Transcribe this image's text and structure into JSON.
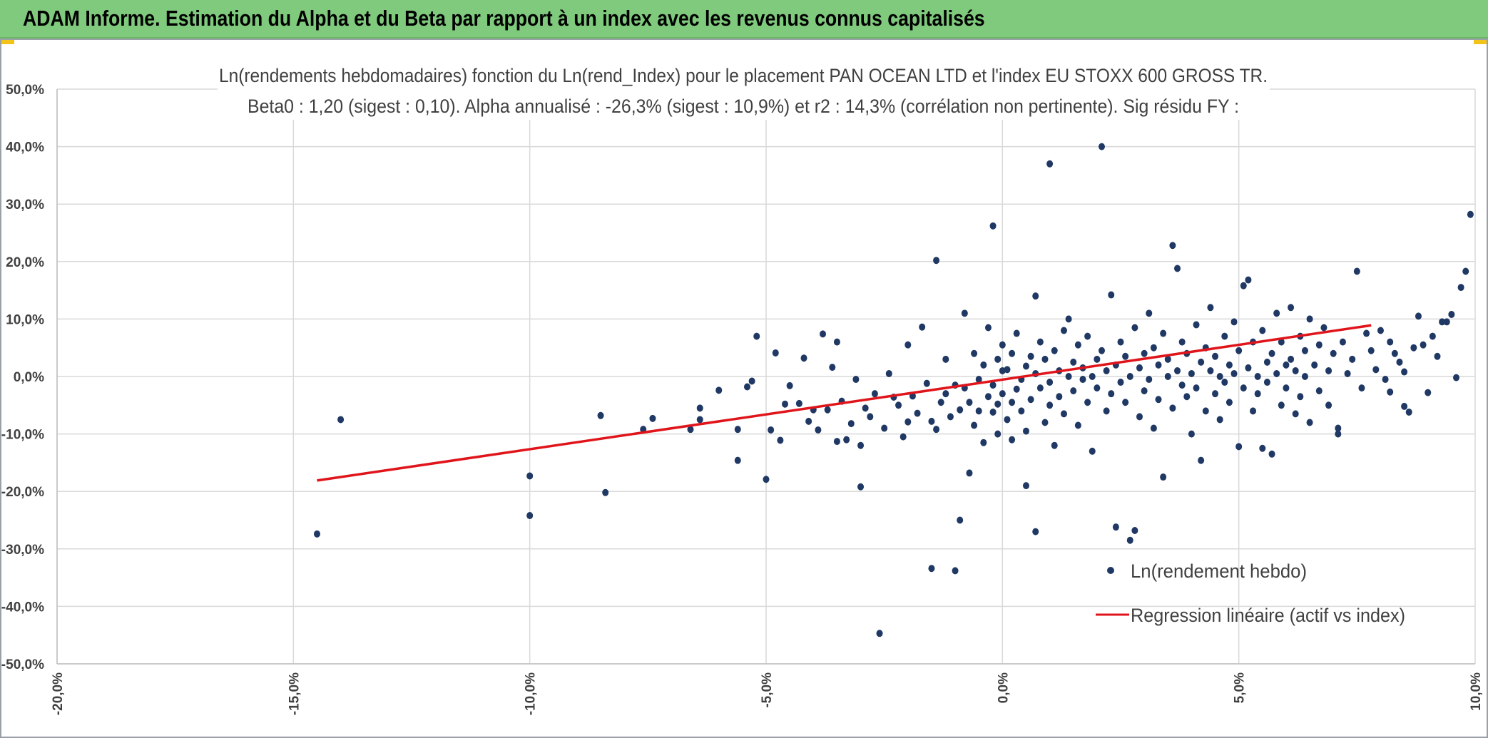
{
  "header": {
    "title": "ADAM Informe. Estimation du Alpha et du Beta par rapport à un index avec les revenus connus capitalisés"
  },
  "colors": {
    "header_bg": "#7fca7c",
    "accent_corner": "#f2c318",
    "point": "#203864",
    "regression": "#e0151b",
    "grid": "#d9d9d9"
  },
  "chart_data": {
    "type": "scatter",
    "title_lines": [
      "Ln(rendements hebdomadaires) fonction du Ln(rend_Index) pour le placement PAN OCEAN LTD et l'index EU STOXX 600 GROSS TR.",
      "Beta0 : 1,20 (sigest : 0,10).  Alpha annualisé : -26,3% (sigest : 10,9%)  et r2 : 14,3% (corrélation non pertinente). Sig résidu FY :"
    ],
    "xlim": [
      -0.2,
      0.1
    ],
    "ylim": [
      -0.5,
      0.5
    ],
    "x_ticks": [
      "-20,0%",
      "-15,0%",
      "-10,0%",
      "-5,0%",
      "0,0%",
      "5,0%",
      "10,0%"
    ],
    "x_tick_values": [
      -0.2,
      -0.15,
      -0.1,
      -0.05,
      0.0,
      0.05,
      0.1
    ],
    "y_ticks": [
      "50,0%",
      "40,0%",
      "30,0%",
      "20,0%",
      "10,0%",
      "0,0%",
      "-10,0%",
      "-20,0%",
      "-30,0%",
      "-40,0%",
      "-50,0%"
    ],
    "y_tick_values": [
      0.5,
      0.4,
      0.3,
      0.2,
      0.1,
      0.0,
      -0.1,
      -0.2,
      -0.3,
      -0.4,
      -0.5
    ],
    "grid": true,
    "legend_position": "bottom-right",
    "series": [
      {
        "name": "Ln(rendement hebdo)",
        "kind": "scatter",
        "points": [
          [
            -0.145,
            -0.274
          ],
          [
            -0.14,
            -0.075
          ],
          [
            -0.1,
            -0.242
          ],
          [
            -0.1,
            -0.173
          ],
          [
            -0.085,
            -0.068
          ],
          [
            -0.084,
            -0.202
          ],
          [
            -0.076,
            -0.092
          ],
          [
            -0.074,
            -0.073
          ],
          [
            -0.066,
            -0.092
          ],
          [
            -0.064,
            -0.075
          ],
          [
            -0.064,
            -0.055
          ],
          [
            -0.06,
            -0.024
          ],
          [
            -0.056,
            -0.092
          ],
          [
            -0.056,
            -0.146
          ],
          [
            -0.054,
            -0.018
          ],
          [
            -0.053,
            -0.008
          ],
          [
            -0.052,
            0.07
          ],
          [
            -0.05,
            -0.179
          ],
          [
            -0.049,
            -0.093
          ],
          [
            -0.048,
            0.041
          ],
          [
            -0.047,
            -0.111
          ],
          [
            -0.046,
            -0.048
          ],
          [
            -0.045,
            -0.016
          ],
          [
            -0.043,
            -0.047
          ],
          [
            -0.042,
            0.032
          ],
          [
            -0.041,
            -0.078
          ],
          [
            -0.04,
            -0.058
          ],
          [
            -0.039,
            -0.093
          ],
          [
            -0.038,
            0.074
          ],
          [
            -0.037,
            -0.058
          ],
          [
            -0.036,
            0.016
          ],
          [
            -0.035,
            -0.113
          ],
          [
            -0.035,
            0.06
          ],
          [
            -0.034,
            -0.043
          ],
          [
            -0.033,
            -0.11
          ],
          [
            -0.032,
            -0.082
          ],
          [
            -0.031,
            -0.005
          ],
          [
            -0.03,
            -0.192
          ],
          [
            -0.03,
            -0.12
          ],
          [
            -0.029,
            -0.055
          ],
          [
            -0.028,
            -0.07
          ],
          [
            -0.027,
            -0.03
          ],
          [
            -0.026,
            -0.447
          ],
          [
            -0.025,
            -0.09
          ],
          [
            -0.024,
            0.005
          ],
          [
            -0.023,
            -0.036
          ],
          [
            -0.022,
            -0.05
          ],
          [
            -0.021,
            -0.105
          ],
          [
            -0.02,
            -0.079
          ],
          [
            -0.02,
            0.055
          ],
          [
            -0.019,
            -0.034
          ],
          [
            -0.018,
            -0.064
          ],
          [
            -0.017,
            0.086
          ],
          [
            -0.016,
            -0.012
          ],
          [
            -0.015,
            -0.078
          ],
          [
            -0.015,
            -0.334
          ],
          [
            -0.014,
            0.202
          ],
          [
            -0.014,
            -0.092
          ],
          [
            -0.013,
            -0.045
          ],
          [
            -0.012,
            -0.03
          ],
          [
            -0.012,
            0.03
          ],
          [
            -0.011,
            -0.07
          ],
          [
            -0.01,
            -0.338
          ],
          [
            -0.01,
            -0.015
          ],
          [
            -0.009,
            -0.058
          ],
          [
            -0.009,
            -0.25
          ],
          [
            -0.008,
            0.11
          ],
          [
            -0.008,
            -0.02
          ],
          [
            -0.007,
            -0.045
          ],
          [
            -0.007,
            -0.168
          ],
          [
            -0.006,
            0.04
          ],
          [
            -0.006,
            -0.085
          ],
          [
            -0.005,
            -0.005
          ],
          [
            -0.005,
            -0.06
          ],
          [
            -0.004,
            0.02
          ],
          [
            -0.004,
            -0.115
          ],
          [
            -0.003,
            -0.035
          ],
          [
            -0.003,
            0.085
          ],
          [
            -0.002,
            0.262
          ],
          [
            -0.002,
            -0.062
          ],
          [
            -0.002,
            -0.015
          ],
          [
            -0.001,
            0.03
          ],
          [
            -0.001,
            -0.048
          ],
          [
            -0.001,
            -0.1
          ],
          [
            0.0,
            0.01
          ],
          [
            0.0,
            -0.03
          ],
          [
            0.0,
            0.055
          ],
          [
            0.001,
            -0.075
          ],
          [
            0.001,
            0.012
          ],
          [
            0.002,
            -0.045
          ],
          [
            0.002,
            -0.11
          ],
          [
            0.002,
            0.04
          ],
          [
            0.003,
            -0.022
          ],
          [
            0.003,
            0.075
          ],
          [
            0.004,
            -0.005
          ],
          [
            0.004,
            -0.06
          ],
          [
            0.005,
            0.018
          ],
          [
            0.005,
            -0.19
          ],
          [
            0.005,
            -0.095
          ],
          [
            0.006,
            0.035
          ],
          [
            0.006,
            -0.04
          ],
          [
            0.007,
            0.005
          ],
          [
            0.007,
            0.14
          ],
          [
            0.007,
            -0.27
          ],
          [
            0.008,
            -0.02
          ],
          [
            0.008,
            0.06
          ],
          [
            0.009,
            -0.08
          ],
          [
            0.009,
            0.03
          ],
          [
            0.01,
            0.37
          ],
          [
            0.01,
            -0.01
          ],
          [
            0.01,
            -0.05
          ],
          [
            0.011,
            0.045
          ],
          [
            0.011,
            -0.12
          ],
          [
            0.012,
            0.01
          ],
          [
            0.012,
            -0.035
          ],
          [
            0.013,
            0.08
          ],
          [
            0.013,
            -0.065
          ],
          [
            0.014,
            0.0
          ],
          [
            0.014,
            0.1
          ],
          [
            0.015,
            -0.025
          ],
          [
            0.015,
            0.025
          ],
          [
            0.016,
            -0.085
          ],
          [
            0.016,
            0.055
          ],
          [
            0.017,
            -0.005
          ],
          [
            0.017,
            0.015
          ],
          [
            0.018,
            -0.045
          ],
          [
            0.018,
            0.07
          ],
          [
            0.019,
            0.0
          ],
          [
            0.019,
            -0.13
          ],
          [
            0.02,
            0.03
          ],
          [
            0.02,
            -0.02
          ],
          [
            0.021,
            0.4
          ],
          [
            0.021,
            0.045
          ],
          [
            0.022,
            -0.06
          ],
          [
            0.022,
            0.01
          ],
          [
            0.023,
            0.142
          ],
          [
            0.023,
            -0.03
          ],
          [
            0.024,
            0.02
          ],
          [
            0.024,
            -0.262
          ],
          [
            0.025,
            0.06
          ],
          [
            0.025,
            -0.01
          ],
          [
            0.026,
            -0.045
          ],
          [
            0.026,
            0.035
          ],
          [
            0.027,
            -0.285
          ],
          [
            0.027,
            0.0
          ],
          [
            0.028,
            0.085
          ],
          [
            0.028,
            -0.268
          ],
          [
            0.029,
            -0.07
          ],
          [
            0.029,
            0.015
          ],
          [
            0.03,
            0.04
          ],
          [
            0.03,
            -0.025
          ],
          [
            0.031,
            0.11
          ],
          [
            0.031,
            -0.005
          ],
          [
            0.032,
            0.05
          ],
          [
            0.032,
            -0.09
          ],
          [
            0.033,
            0.02
          ],
          [
            0.033,
            -0.04
          ],
          [
            0.034,
            -0.175
          ],
          [
            0.034,
            0.075
          ],
          [
            0.035,
            0.0
          ],
          [
            0.035,
            0.03
          ],
          [
            0.036,
            0.228
          ],
          [
            0.036,
            -0.055
          ],
          [
            0.037,
            0.188
          ],
          [
            0.037,
            0.01
          ],
          [
            0.038,
            -0.015
          ],
          [
            0.038,
            0.06
          ],
          [
            0.039,
            -0.035
          ],
          [
            0.039,
            0.04
          ],
          [
            0.04,
            0.005
          ],
          [
            0.04,
            -0.1
          ],
          [
            0.041,
            0.09
          ],
          [
            0.041,
            -0.02
          ],
          [
            0.042,
            0.025
          ],
          [
            0.042,
            -0.146
          ],
          [
            0.043,
            0.05
          ],
          [
            0.043,
            -0.06
          ],
          [
            0.044,
            0.01
          ],
          [
            0.044,
            0.12
          ],
          [
            0.045,
            -0.03
          ],
          [
            0.045,
            0.035
          ],
          [
            0.046,
            0.0
          ],
          [
            0.046,
            -0.075
          ],
          [
            0.047,
            0.07
          ],
          [
            0.047,
            -0.01
          ],
          [
            0.048,
            0.02
          ],
          [
            0.048,
            -0.045
          ],
          [
            0.049,
            0.095
          ],
          [
            0.049,
            0.005
          ],
          [
            0.05,
            -0.122
          ],
          [
            0.05,
            0.045
          ],
          [
            0.051,
            -0.02
          ],
          [
            0.051,
            0.158
          ],
          [
            0.052,
            0.015
          ],
          [
            0.052,
            0.168
          ],
          [
            0.053,
            -0.06
          ],
          [
            0.053,
            0.06
          ],
          [
            0.054,
            0.0
          ],
          [
            0.054,
            -0.03
          ],
          [
            0.055,
            0.08
          ],
          [
            0.055,
            -0.125
          ],
          [
            0.056,
            0.025
          ],
          [
            0.056,
            -0.01
          ],
          [
            0.057,
            0.04
          ],
          [
            0.057,
            -0.135
          ],
          [
            0.058,
            0.11
          ],
          [
            0.058,
            0.005
          ],
          [
            0.059,
            -0.05
          ],
          [
            0.059,
            0.06
          ],
          [
            0.06,
            0.02
          ],
          [
            0.06,
            -0.02
          ],
          [
            0.061,
            0.12
          ],
          [
            0.061,
            0.03
          ],
          [
            0.062,
            -0.065
          ],
          [
            0.062,
            0.01
          ],
          [
            0.063,
            0.07
          ],
          [
            0.063,
            -0.035
          ],
          [
            0.064,
            0.045
          ],
          [
            0.064,
            0.0
          ],
          [
            0.065,
            0.1
          ],
          [
            0.065,
            -0.08
          ],
          [
            0.066,
            0.02
          ],
          [
            0.067,
            0.055
          ],
          [
            0.067,
            -0.025
          ],
          [
            0.068,
            0.085
          ],
          [
            0.069,
            0.01
          ],
          [
            0.069,
            -0.05
          ],
          [
            0.07,
            0.04
          ],
          [
            0.071,
            -0.09
          ],
          [
            0.071,
            -0.1
          ],
          [
            0.072,
            0.06
          ],
          [
            0.073,
            0.005
          ],
          [
            0.074,
            0.03
          ],
          [
            0.075,
            0.183
          ],
          [
            0.076,
            -0.02
          ],
          [
            0.077,
            0.075
          ],
          [
            0.078,
            0.045
          ],
          [
            0.079,
            0.012
          ],
          [
            0.08,
            0.08
          ],
          [
            0.081,
            -0.005
          ],
          [
            0.082,
            0.06
          ],
          [
            0.083,
            0.04
          ],
          [
            0.084,
            0.025
          ],
          [
            0.085,
            0.008
          ],
          [
            0.086,
            -0.062
          ],
          [
            0.087,
            0.05
          ],
          [
            0.088,
            0.105
          ],
          [
            0.089,
            0.055
          ],
          [
            0.09,
            -0.028
          ],
          [
            0.091,
            0.07
          ],
          [
            0.092,
            0.035
          ],
          [
            0.093,
            0.095
          ],
          [
            0.094,
            0.095
          ],
          [
            0.095,
            0.108
          ],
          [
            0.096,
            -0.002
          ],
          [
            0.097,
            0.155
          ],
          [
            0.098,
            0.183
          ],
          [
            0.099,
            0.282
          ],
          [
            0.085,
            -0.052
          ],
          [
            0.082,
            -0.027
          ]
        ]
      },
      {
        "name": "Regression linéaire (actif vs index)",
        "kind": "line",
        "x": [
          -0.145,
          0.078
        ],
        "y": [
          -0.181,
          0.089
        ]
      }
    ]
  }
}
